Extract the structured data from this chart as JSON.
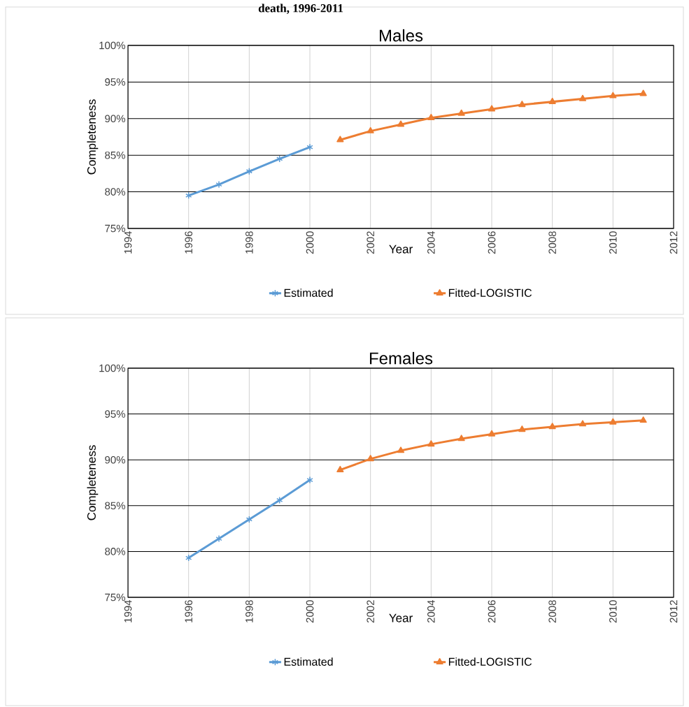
{
  "chart_data": [
    {
      "type": "line",
      "title": "Males",
      "annotations": [
        "death, 1996-2011"
      ],
      "xlabel": "Year",
      "ylabel": "Completeness",
      "xlim": [
        1994,
        2012
      ],
      "xticks": [
        1994,
        1996,
        1998,
        2000,
        2002,
        2004,
        2006,
        2008,
        2010,
        2012
      ],
      "ylim": [
        75,
        100
      ],
      "yticks": [
        {
          "value": 75,
          "label": "75%"
        },
        {
          "value": 80,
          "label": "80%"
        },
        {
          "value": 85,
          "label": "85%"
        },
        {
          "value": 90,
          "label": "90%"
        },
        {
          "value": 95,
          "label": "95%"
        },
        {
          "value": 100,
          "label": "100%"
        }
      ],
      "grid": true,
      "legend": "bottom",
      "series": [
        {
          "name": "Estimated",
          "color": "#5b9bd5",
          "marker": "cross",
          "x": [
            1996,
            1997,
            1998,
            1999,
            2000
          ],
          "values": [
            79.5,
            81.0,
            82.8,
            84.5,
            86.1
          ]
        },
        {
          "name": "Fitted-LOGISTIC",
          "color": "#ed7d31",
          "marker": "triangle",
          "x": [
            2001,
            2002,
            2003,
            2004,
            2005,
            2006,
            2007,
            2008,
            2009,
            2010,
            2011
          ],
          "values": [
            87.1,
            88.3,
            89.2,
            90.1,
            90.7,
            91.3,
            91.9,
            92.3,
            92.7,
            93.1,
            93.4
          ]
        }
      ]
    },
    {
      "type": "line",
      "title": "Females",
      "xlabel": "Year",
      "ylabel": "Completeness",
      "xlim": [
        1994,
        2012
      ],
      "xticks": [
        1994,
        1996,
        1998,
        2000,
        2002,
        2004,
        2006,
        2008,
        2010,
        2012
      ],
      "ylim": [
        75,
        100
      ],
      "yticks": [
        {
          "value": 75,
          "label": "75%"
        },
        {
          "value": 80,
          "label": "80%"
        },
        {
          "value": 85,
          "label": "85%"
        },
        {
          "value": 90,
          "label": "90%"
        },
        {
          "value": 95,
          "label": "95%"
        },
        {
          "value": 100,
          "label": "100%"
        }
      ],
      "grid": true,
      "legend": "bottom",
      "series": [
        {
          "name": "Estimated",
          "color": "#5b9bd5",
          "marker": "cross",
          "x": [
            1996,
            1997,
            1998,
            1999,
            2000
          ],
          "values": [
            79.3,
            81.4,
            83.5,
            85.6,
            87.8
          ]
        },
        {
          "name": "Fitted-LOGISTIC",
          "color": "#ed7d31",
          "marker": "triangle",
          "x": [
            2001,
            2002,
            2003,
            2004,
            2005,
            2006,
            2007,
            2008,
            2009,
            2010,
            2011
          ],
          "values": [
            88.9,
            90.1,
            91.0,
            91.7,
            92.3,
            92.8,
            93.3,
            93.6,
            93.9,
            94.1,
            94.3
          ]
        }
      ]
    }
  ]
}
